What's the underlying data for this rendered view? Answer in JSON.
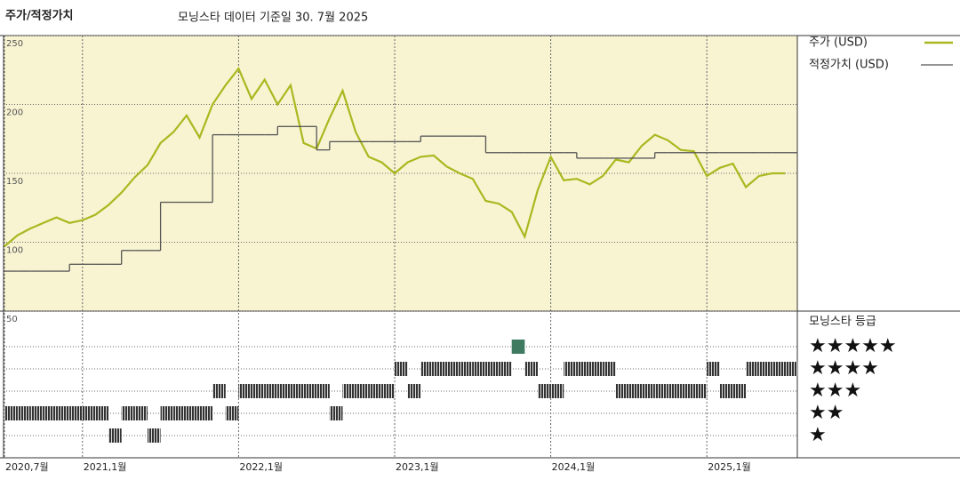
{
  "chart_data": [
    {
      "type": "line",
      "y_label": "주가/적정가치",
      "title": "모닝스타 데이터 기준일 30. 7월 2025",
      "x": [
        "2020-07",
        "2020-08",
        "2020-09",
        "2020-10",
        "2020-11",
        "2020-12",
        "2021-01",
        "2021-02",
        "2021-03",
        "2021-04",
        "2021-05",
        "2021-06",
        "2021-07",
        "2021-08",
        "2021-09",
        "2021-10",
        "2021-11",
        "2021-12",
        "2022-01",
        "2022-02",
        "2022-03",
        "2022-04",
        "2022-05",
        "2022-06",
        "2022-07",
        "2022-08",
        "2022-09",
        "2022-10",
        "2022-11",
        "2022-12",
        "2023-01",
        "2023-02",
        "2023-03",
        "2023-04",
        "2023-05",
        "2023-06",
        "2023-07",
        "2023-08",
        "2023-09",
        "2023-10",
        "2023-11",
        "2023-12",
        "2024-01",
        "2024-02",
        "2024-03",
        "2024-04",
        "2024-05",
        "2024-06",
        "2024-07",
        "2024-08",
        "2024-09",
        "2024-10",
        "2024-11",
        "2024-12",
        "2025-01",
        "2025-02",
        "2025-03",
        "2025-04",
        "2025-05",
        "2025-06",
        "2025-07"
      ],
      "xlim": [
        "2020-07",
        "2025-07"
      ],
      "xticks": [
        {
          "value": "2020-07",
          "label": "2020,7월"
        },
        {
          "value": "2021-01",
          "label": "2021,1월"
        },
        {
          "value": "2022-01",
          "label": "2022,1월"
        },
        {
          "value": "2023-01",
          "label": "2023,1월"
        },
        {
          "value": "2024-01",
          "label": "2024,1월"
        },
        {
          "value": "2025-01",
          "label": "2025,1월"
        }
      ],
      "ylim": [
        50,
        250
      ],
      "yticks": [
        50,
        100,
        150,
        200,
        250
      ],
      "grid": true,
      "background": "#f8f4d2",
      "series": [
        {
          "name": "주가 (USD)",
          "color": "#a9b81f",
          "values": [
            97,
            105,
            110,
            114,
            118,
            114,
            116,
            120,
            127,
            136,
            147,
            156,
            172,
            180,
            192,
            176,
            200,
            214,
            226,
            204,
            218,
            200,
            214,
            172,
            168,
            190,
            210,
            180,
            162,
            158,
            150,
            158,
            162,
            163,
            155,
            150,
            146,
            130,
            128,
            122,
            104,
            138,
            162,
            145,
            146,
            142,
            148,
            160,
            158,
            170,
            178,
            174,
            167,
            166,
            148,
            154,
            157,
            140,
            148,
            150,
            150
          ]
        },
        {
          "name": "적정가치 (USD)",
          "color": "#555555",
          "drawstyle": "steps-post",
          "values": [
            79,
            79,
            79,
            79,
            79,
            84,
            84,
            84,
            84,
            94,
            94,
            94,
            129,
            129,
            129,
            129,
            178,
            178,
            178,
            178,
            178,
            184,
            184,
            184,
            167,
            173,
            173,
            173,
            173,
            173,
            173,
            173,
            177,
            177,
            177,
            177,
            177,
            165,
            165,
            165,
            165,
            165,
            165,
            165,
            161,
            161,
            161,
            161,
            161,
            161,
            165,
            165,
            165,
            165,
            165,
            165,
            165,
            165,
            165,
            165,
            165
          ]
        }
      ]
    },
    {
      "type": "rating",
      "title": "모닝스타 등급",
      "ylim": [
        0,
        6.6
      ],
      "yticks": [
        {
          "value": 5,
          "label": "★★★★★"
        },
        {
          "value": 4,
          "label": "★★★★"
        },
        {
          "value": 3,
          "label": "★★★"
        },
        {
          "value": 2,
          "label": "★★"
        },
        {
          "value": 1,
          "label": "★"
        }
      ],
      "color": "#333333",
      "top_color": "#3d7a60",
      "values": [
        2,
        2,
        2,
        2,
        2,
        2,
        2,
        2,
        1,
        2,
        2,
        1,
        2,
        2,
        2,
        2,
        3,
        2,
        3,
        3,
        3,
        3,
        3,
        3,
        3,
        2,
        3,
        3,
        3,
        3,
        4,
        3,
        4,
        4,
        4,
        4,
        4,
        4,
        4,
        5,
        4,
        3,
        3,
        4,
        4,
        4,
        4,
        3,
        3,
        3,
        3,
        3,
        3,
        3,
        4,
        3,
        3,
        4,
        4,
        4,
        4
      ]
    }
  ]
}
